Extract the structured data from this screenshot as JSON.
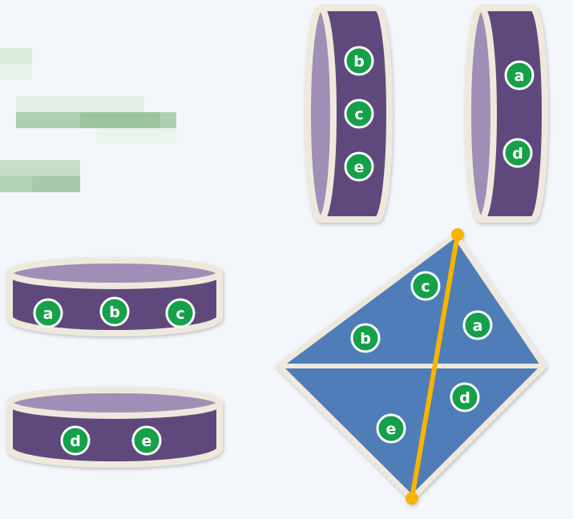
{
  "colors": {
    "background": "#f3f7fb",
    "cylinder_side": "#5e4a7b",
    "cylinder_top": "#9f8fb6",
    "outline": "#efe9dd",
    "diamond_fill": "#4f7db8",
    "diagonal": "#f8b400",
    "badge_fill": "#12a04a",
    "badge_ring": "#ffffff",
    "blur_light": "#dfeee1",
    "blur_dark": "#a3c8a7"
  },
  "cylinders": {
    "vertical_1": {
      "labels": [
        "b",
        "c",
        "e"
      ]
    },
    "vertical_2": {
      "labels": [
        "a",
        "d"
      ]
    },
    "horizontal_1": {
      "labels": [
        "a",
        "b",
        "c"
      ]
    },
    "horizontal_2": {
      "labels": [
        "d",
        "e"
      ]
    }
  },
  "diamond": {
    "labels": [
      "c",
      "a",
      "b",
      "d",
      "e"
    ]
  }
}
